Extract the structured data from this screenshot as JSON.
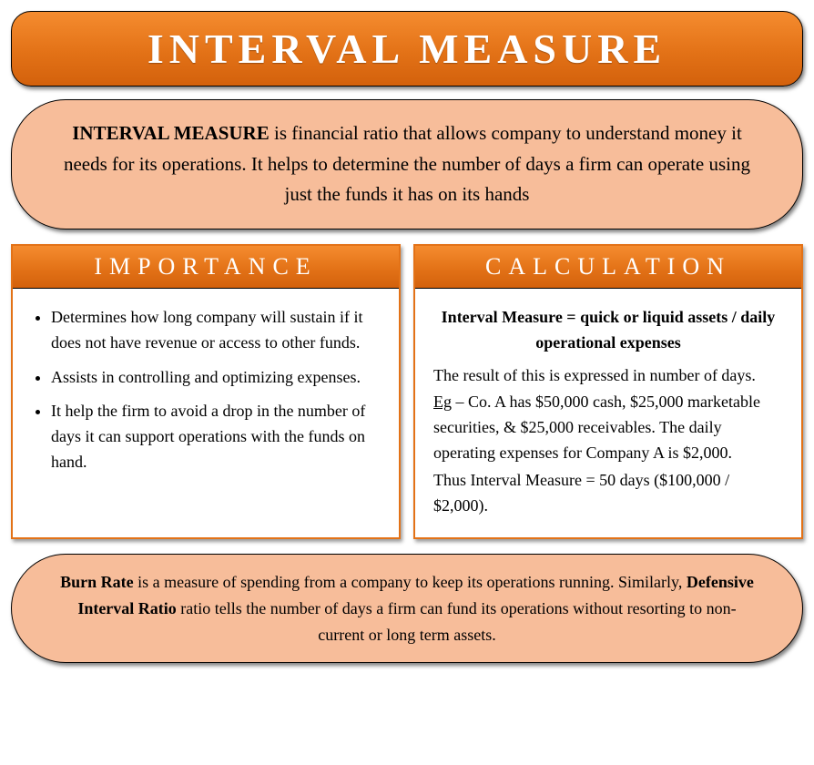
{
  "type": "infographic",
  "background_color": "#ffffff",
  "title": {
    "text": "INTERVAL MEASURE",
    "font_size": 46,
    "font_weight": "bold",
    "letter_spacing": 6,
    "text_color": "#ffffff",
    "gradient_top": "#f58c2f",
    "gradient_mid": "#e37217",
    "gradient_bottom": "#d3610c",
    "border_color": "#000000",
    "border_radius": 22
  },
  "definition": {
    "term": "INTERVAL MEASURE",
    "body": " is financial ratio that allows company to understand money it needs for its operations. It helps to determine the number of days a firm can operate using just the funds it has on its hands",
    "background_color": "#f7bd9a",
    "border_color": "#000000",
    "border_radius": 60,
    "font_size": 21,
    "text_color": "#000000"
  },
  "importance": {
    "header": "IMPORTANCE",
    "header_gradient_top": "#f58c2f",
    "header_gradient_bottom": "#d3610c",
    "header_text_color": "#ffffff",
    "header_font_size": 26,
    "header_letter_spacing": 8,
    "card_border_color": "#e37217",
    "body_font_size": 18,
    "bullets": [
      "Determines how long company will sustain if it does not have revenue or access to other funds.",
      "Assists in controlling and optimizing expenses.",
      "It help the firm to avoid a drop in the number of days it can support operations with the funds on hand."
    ]
  },
  "calculation": {
    "header": "CALCULATION",
    "header_gradient_top": "#f58c2f",
    "header_gradient_bottom": "#d3610c",
    "header_text_color": "#ffffff",
    "header_font_size": 26,
    "header_letter_spacing": 8,
    "card_border_color": "#e37217",
    "body_font_size": 18,
    "formula": "Interval Measure = quick or liquid assets / daily operational expenses",
    "result_text": "The result of this is expressed in number of days.",
    "eg_label": "Eg",
    "eg_text": " – Co. A has $50,000 cash, $25,000 marketable securities, & $25,000 receivables. The daily operating expenses for Company A is $2,000.",
    "conclusion": "Thus Interval Measure = 50 days ($100,000 / $2,000).",
    "example_values": {
      "cash": 50000,
      "marketable_securities": 25000,
      "receivables": 25000,
      "daily_operating_expenses": 2000,
      "total_liquid_assets": 100000,
      "interval_measure_days": 50
    }
  },
  "footer": {
    "term1": "Burn Rate",
    "text1": " is a measure of spending from a company to keep its operations running. Similarly, ",
    "term2": "Defensive Interval Ratio",
    "text2": " ratio tells the number of days a firm can fund its operations without resorting to non-current or long term assets.",
    "background_color": "#f7bd9a",
    "border_color": "#000000",
    "border_radius": 60,
    "font_size": 18,
    "text_color": "#000000"
  }
}
